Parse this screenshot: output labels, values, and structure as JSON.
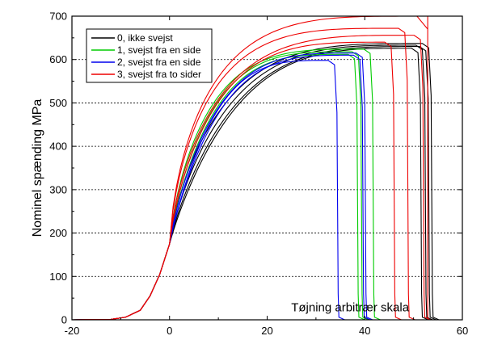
{
  "chart_data": {
    "type": "line",
    "title": "",
    "xlabel": "",
    "ylabel": "Nominel spænding MPa",
    "annotation": "Tøjning arbitrær skala",
    "xlim": [
      -20,
      60
    ],
    "ylim": [
      0,
      700
    ],
    "xticks": [
      -20,
      0,
      20,
      40,
      60
    ],
    "yticks": [
      0,
      100,
      200,
      300,
      400,
      500,
      600,
      700
    ],
    "grid": "horizontal-dashed",
    "legend_position": "top-left",
    "legend": [
      {
        "label": "0, ikke svejst",
        "color": "#000000"
      },
      {
        "label": "1, svejst fra en side",
        "color": "#00cc00"
      },
      {
        "label": "2, svejst fra en side",
        "color": "#0000ee"
      },
      {
        "label": "3, svejst fra to sider",
        "color": "#ee0000"
      }
    ],
    "toe": [
      [
        -20,
        0
      ],
      [
        -12,
        1
      ],
      [
        -9,
        6
      ],
      [
        -6,
        22
      ],
      [
        -4,
        55
      ],
      [
        -2,
        105
      ],
      [
        0,
        175
      ]
    ],
    "series": [
      {
        "name": "0, ikke svejst",
        "color": "#000000",
        "curves": [
          {
            "peak": 637,
            "break": 54.0,
            "shape": 0.8
          },
          {
            "peak": 633,
            "break": 52.7,
            "shape": 0.86
          },
          {
            "peak": 630,
            "break": 53.4,
            "shape": 0.9
          },
          {
            "peak": 626,
            "break": 51.8,
            "shape": 0.94
          }
        ]
      },
      {
        "name": "1, svejst fra en side",
        "color": "#00cc00",
        "curves": [
          {
            "peak": 624,
            "break": 42.0,
            "shape": 0.78
          },
          {
            "peak": 618,
            "break": 39.6,
            "shape": 0.84
          },
          {
            "peak": 612,
            "break": 38.8,
            "shape": 0.88
          }
        ]
      },
      {
        "name": "2, svejst fra en side",
        "color": "#0000ee",
        "curves": [
          {
            "peak": 615,
            "break": 40.4,
            "shape": 0.88
          },
          {
            "peak": 610,
            "break": 39.9,
            "shape": 0.93
          },
          {
            "peak": 598,
            "break": 34.7,
            "shape": 0.96
          }
        ]
      },
      {
        "name": "3, svejst fra to sider",
        "color": "#ee0000",
        "curves": [
          {
            "peak": 672,
            "break": 49.1,
            "shape": 0.72
          },
          {
            "peak": 656,
            "break": 52.3,
            "shape": 0.76
          },
          {
            "peak": 640,
            "break": 46.3,
            "shape": 0.81
          },
          {
            "peak": 700,
            "break": 52.9,
            "shape": 0.7,
            "spike": true
          }
        ]
      }
    ]
  }
}
